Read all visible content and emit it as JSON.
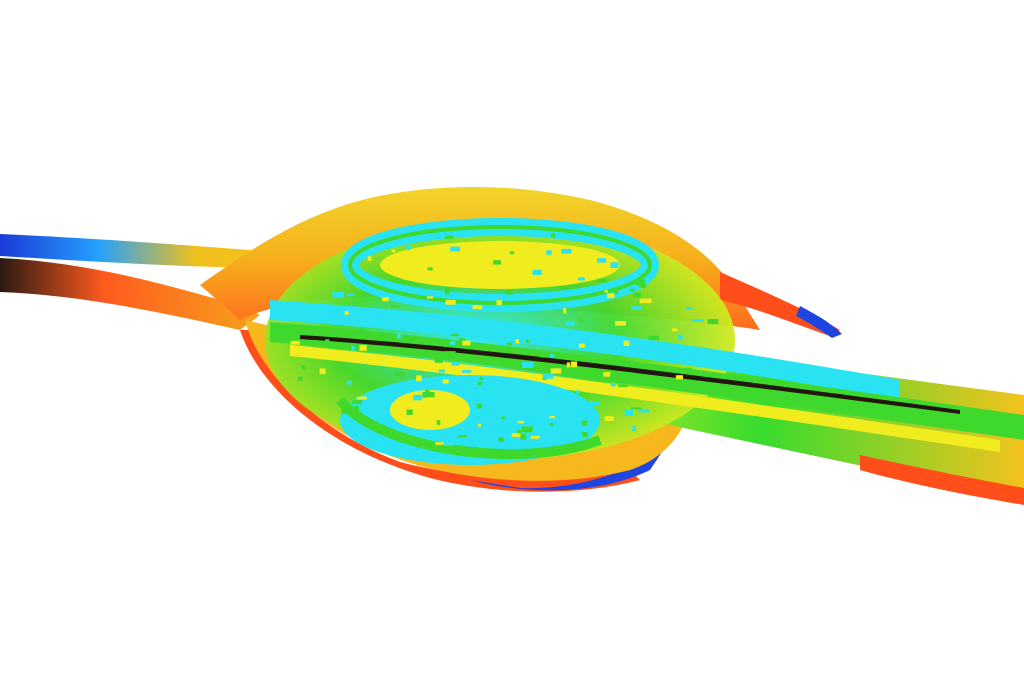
{
  "viewport": {
    "background": "#ffffff"
  },
  "render": {
    "subject": "isosurface-3d",
    "colormap": [
      "#1a3bd6",
      "#25a8ff",
      "#28e6f0",
      "#37dc2e",
      "#9fe21c",
      "#f2ee22",
      "#f6b21c",
      "#ff5a1e",
      "#2a1a12"
    ],
    "palette": {
      "outer_shell": "#f4c21e",
      "outer_shell_light": "#f2e42a",
      "shell_edge": "#ff4e1a",
      "shell_underside": "#1f45e0",
      "inner_cyan": "#29e3f2",
      "inner_green": "#3fd82c",
      "inner_yellow": "#f0ec1e",
      "shadow": "#23160e"
    }
  }
}
